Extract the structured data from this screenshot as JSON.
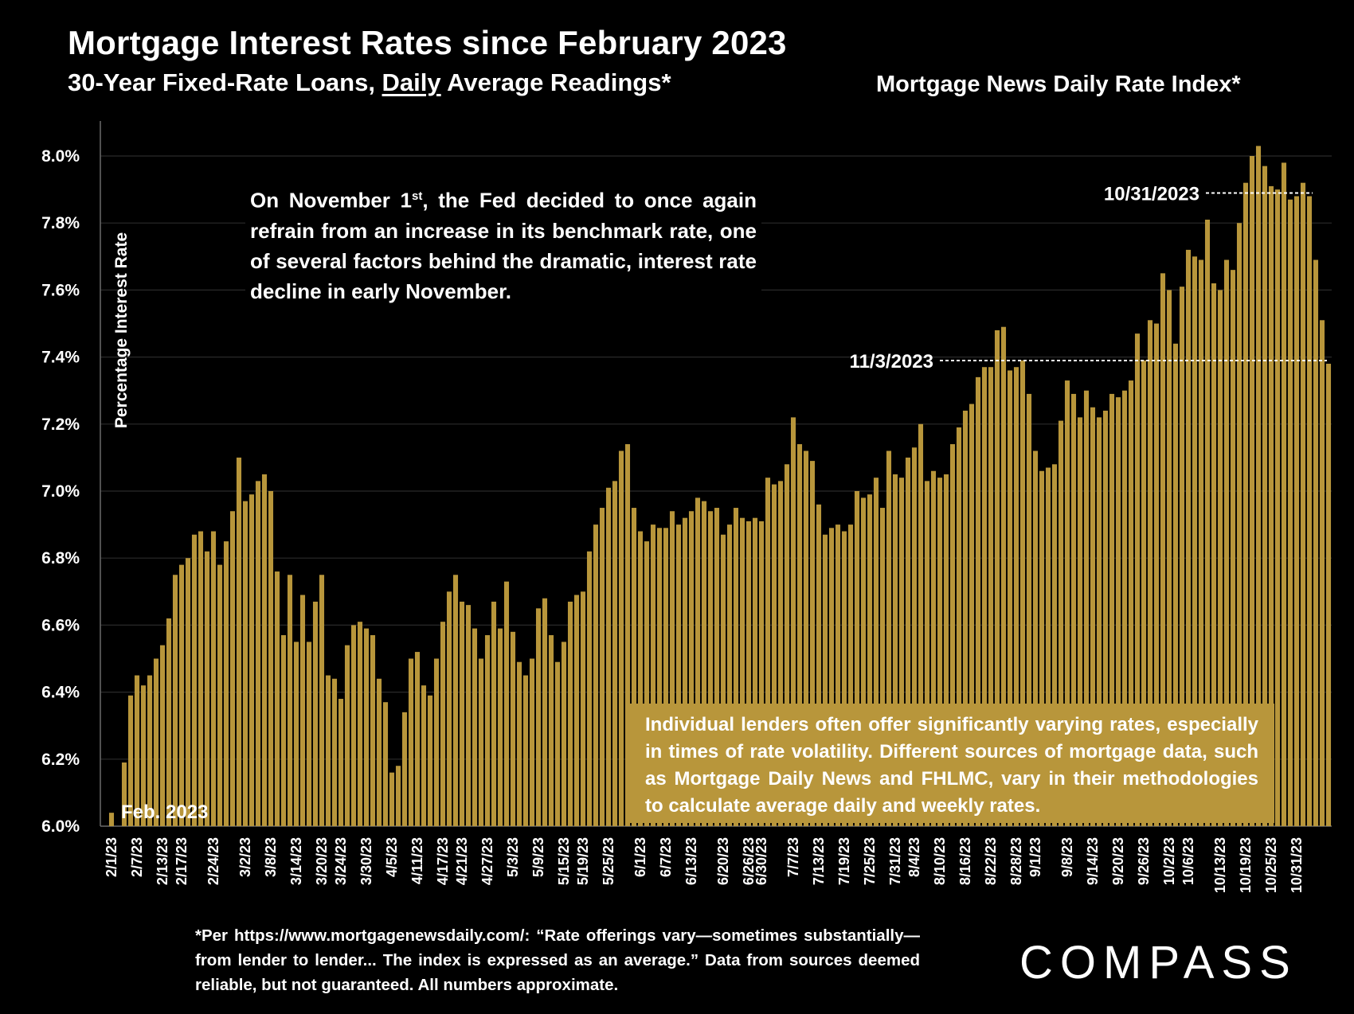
{
  "header": {
    "title": "Mortgage Interest Rates since February 2023",
    "subtitle_pre": "30-Year Fixed-Rate Loans, ",
    "subtitle_underlined": "Daily",
    "subtitle_post": " Average Readings*",
    "source_title": "Mortgage News Daily Rate Index*"
  },
  "note": {
    "pre": "On November 1",
    "sup": "st",
    "post": ", the Fed decided to once again refrain from an increase in its benchmark rate, one of several factors behind the dramatic, interest rate decline in early November."
  },
  "disclaimer": "Individual lenders often offer significantly varying rates, especially in times of rate volatility. Different sources of mortgage data, such as Mortgage Daily News and FHLMC, vary in their methodologies to calculate average daily and weekly rates.",
  "footnote": "*Per https://www.mortgagenewsdaily.com/: “Rate offerings vary—sometimes substantially—from lender to lender... The index is expressed as an average.” Data from sources deemed reliable, but not guaranteed. All numbers approximate.",
  "logo": "COMPASS",
  "colors": {
    "bar": "#b8963b",
    "background": "#000000",
    "text": "#ffffff"
  },
  "chart_data": {
    "type": "bar",
    "title": "Mortgage Interest Rates since February 2023",
    "ylabel": "Percentage Interest Rate",
    "xlabel": "",
    "ylim": [
      6.0,
      8.1
    ],
    "ytick_values": [
      6.0,
      6.2,
      6.4,
      6.6,
      6.8,
      7.0,
      7.2,
      7.4,
      7.6,
      7.8,
      8.0
    ],
    "ytick_labels": [
      "6.0%",
      "6.2%",
      "6.4%",
      "6.6%",
      "6.8%",
      "7.0%",
      "7.2%",
      "7.4%",
      "7.6%",
      "7.8%",
      "8.0%"
    ],
    "xtick_labels": [
      "2/1/23",
      "2/7/23",
      "2/13/23",
      "2/17/23",
      "2/24/23",
      "3/2/23",
      "3/8/23",
      "3/14/23",
      "3/20/23",
      "3/24/23",
      "3/30/23",
      "4/5/23",
      "4/11/23",
      "4/17/23",
      "4/21/23",
      "4/27/23",
      "5/3/23",
      "5/9/23",
      "5/15/23",
      "5/19/23",
      "5/25/23",
      "6/1/23",
      "6/7/23",
      "6/13/23",
      "6/20/23",
      "6/26/23",
      "6/30/23",
      "7/7/23",
      "7/13/23",
      "7/19/23",
      "7/25/23",
      "7/31/23",
      "8/4/23",
      "8/10/23",
      "8/16/23",
      "8/22/23",
      "8/28/23",
      "9/1/23",
      "9/8/23",
      "9/14/23",
      "9/20/23",
      "9/26/23",
      "10/2/23",
      "10/6/23",
      "10/13/23",
      "10/19/23",
      "10/25/23",
      "10/31/23"
    ],
    "xtick_positions": [
      0,
      4,
      8,
      11,
      16,
      21,
      25,
      29,
      33,
      36,
      40,
      44,
      48,
      52,
      55,
      59,
      63,
      67,
      71,
      74,
      78,
      83,
      87,
      91,
      96,
      100,
      102,
      107,
      111,
      115,
      119,
      123,
      126,
      130,
      134,
      138,
      142,
      145,
      150,
      154,
      158,
      162,
      166,
      169,
      174,
      178,
      182,
      186
    ],
    "values": [
      6.04,
      6.0,
      6.19,
      6.39,
      6.45,
      6.42,
      6.45,
      6.5,
      6.54,
      6.62,
      6.75,
      6.78,
      6.8,
      6.87,
      6.88,
      6.82,
      6.88,
      6.78,
      6.85,
      6.94,
      7.1,
      6.97,
      6.99,
      7.03,
      7.05,
      7.0,
      6.76,
      6.57,
      6.75,
      6.55,
      6.69,
      6.55,
      6.67,
      6.75,
      6.45,
      6.44,
      6.38,
      6.54,
      6.6,
      6.61,
      6.59,
      6.57,
      6.44,
      6.37,
      6.16,
      6.18,
      6.34,
      6.5,
      6.52,
      6.42,
      6.39,
      6.5,
      6.61,
      6.7,
      6.75,
      6.67,
      6.66,
      6.59,
      6.5,
      6.57,
      6.67,
      6.59,
      6.73,
      6.58,
      6.49,
      6.45,
      6.5,
      6.65,
      6.68,
      6.57,
      6.49,
      6.55,
      6.67,
      6.69,
      6.7,
      6.82,
      6.9,
      6.95,
      7.01,
      7.03,
      7.12,
      7.14,
      6.95,
      6.88,
      6.85,
      6.9,
      6.89,
      6.89,
      6.94,
      6.9,
      6.92,
      6.94,
      6.98,
      6.97,
      6.94,
      6.95,
      6.87,
      6.9,
      6.95,
      6.92,
      6.91,
      6.92,
      6.91,
      7.04,
      7.02,
      7.03,
      7.08,
      7.22,
      7.14,
      7.12,
      7.09,
      6.96,
      6.87,
      6.89,
      6.9,
      6.88,
      6.9,
      7.0,
      6.98,
      6.99,
      7.04,
      6.95,
      7.12,
      7.05,
      7.04,
      7.1,
      7.13,
      7.2,
      7.03,
      7.06,
      7.04,
      7.05,
      7.14,
      7.19,
      7.24,
      7.26,
      7.34,
      7.37,
      7.37,
      7.48,
      7.49,
      7.36,
      7.37,
      7.39,
      7.29,
      7.12,
      7.06,
      7.07,
      7.08,
      7.21,
      7.33,
      7.29,
      7.22,
      7.3,
      7.25,
      7.22,
      7.24,
      7.29,
      7.28,
      7.3,
      7.33,
      7.47,
      7.39,
      7.51,
      7.5,
      7.65,
      7.6,
      7.44,
      7.61,
      7.72,
      7.7,
      7.69,
      7.81,
      7.62,
      7.6,
      7.69,
      7.66,
      7.8,
      7.92,
      8.0,
      8.03,
      7.97,
      7.91,
      7.9,
      7.98,
      7.87,
      7.88,
      7.92,
      7.88,
      7.69,
      7.51,
      7.38
    ],
    "annotations": [
      {
        "label": "Feb. 2023"
      },
      {
        "label": "11/3/2023",
        "value": 7.38
      },
      {
        "label": "10/31/2023",
        "value": 7.88
      }
    ]
  }
}
